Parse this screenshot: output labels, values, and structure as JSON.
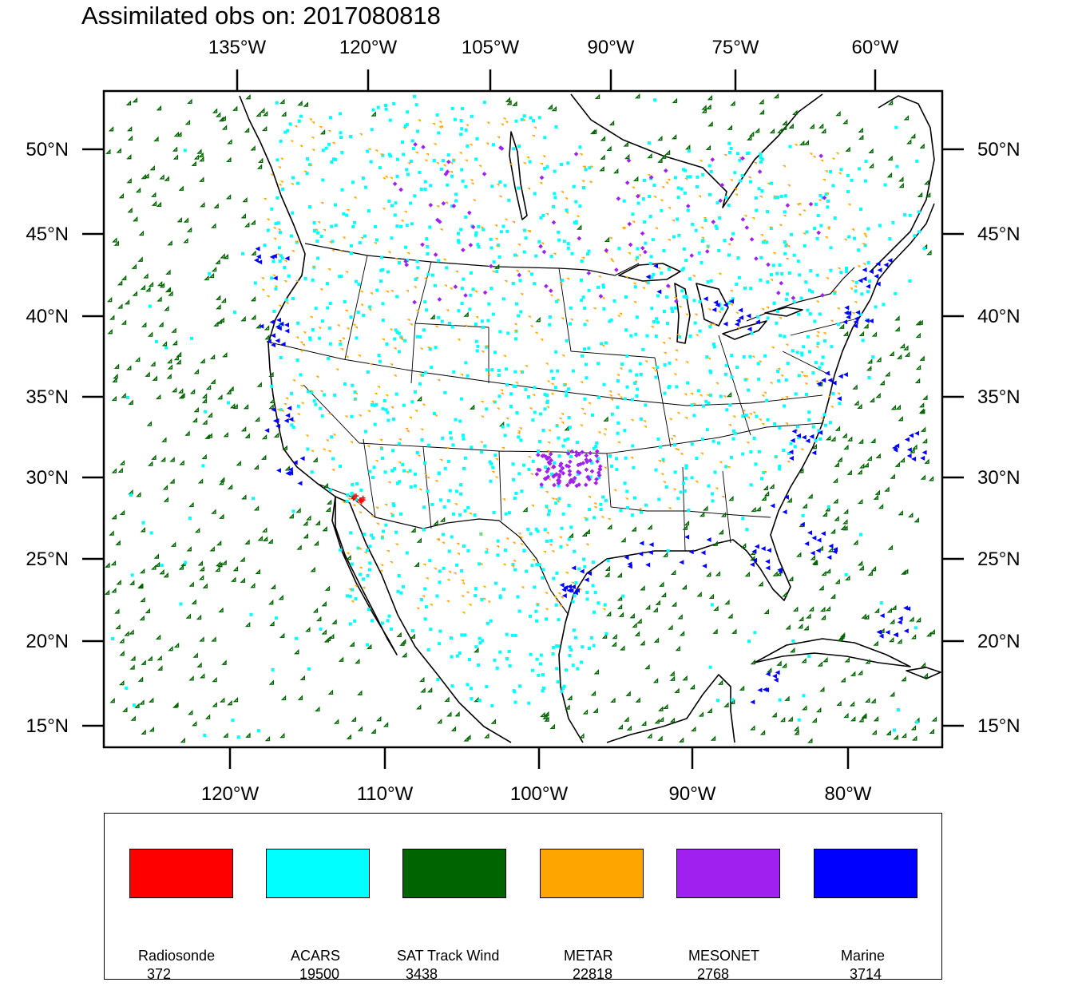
{
  "title": "Assimilated obs on: 2017080818",
  "top_longitude_labels": [
    "135°W",
    "120°W",
    "105°W",
    "90°W",
    "75°W",
    "60°W"
  ],
  "bottom_longitude_labels": [
    "120°W",
    "110°W",
    "100°W",
    "90°W",
    "80°W"
  ],
  "latitude_labels": [
    "50°N",
    "45°N",
    "40°N",
    "35°N",
    "30°N",
    "25°N",
    "20°N",
    "15°N"
  ],
  "legend": [
    {
      "name": "Radiosonde",
      "count": "372",
      "color": "#ff0000"
    },
    {
      "name": "ACARS",
      "count": "19500",
      "color": "#00ffff"
    },
    {
      "name": "SAT Track Wind",
      "count": "3438",
      "color": "#006400"
    },
    {
      "name": "METAR",
      "count": "22818",
      "color": "#ffa500"
    },
    {
      "name": "MESONET",
      "count": "2768",
      "color": "#a020f0"
    },
    {
      "name": "Marine",
      "count": "3714",
      "color": "#0000ff"
    }
  ]
}
